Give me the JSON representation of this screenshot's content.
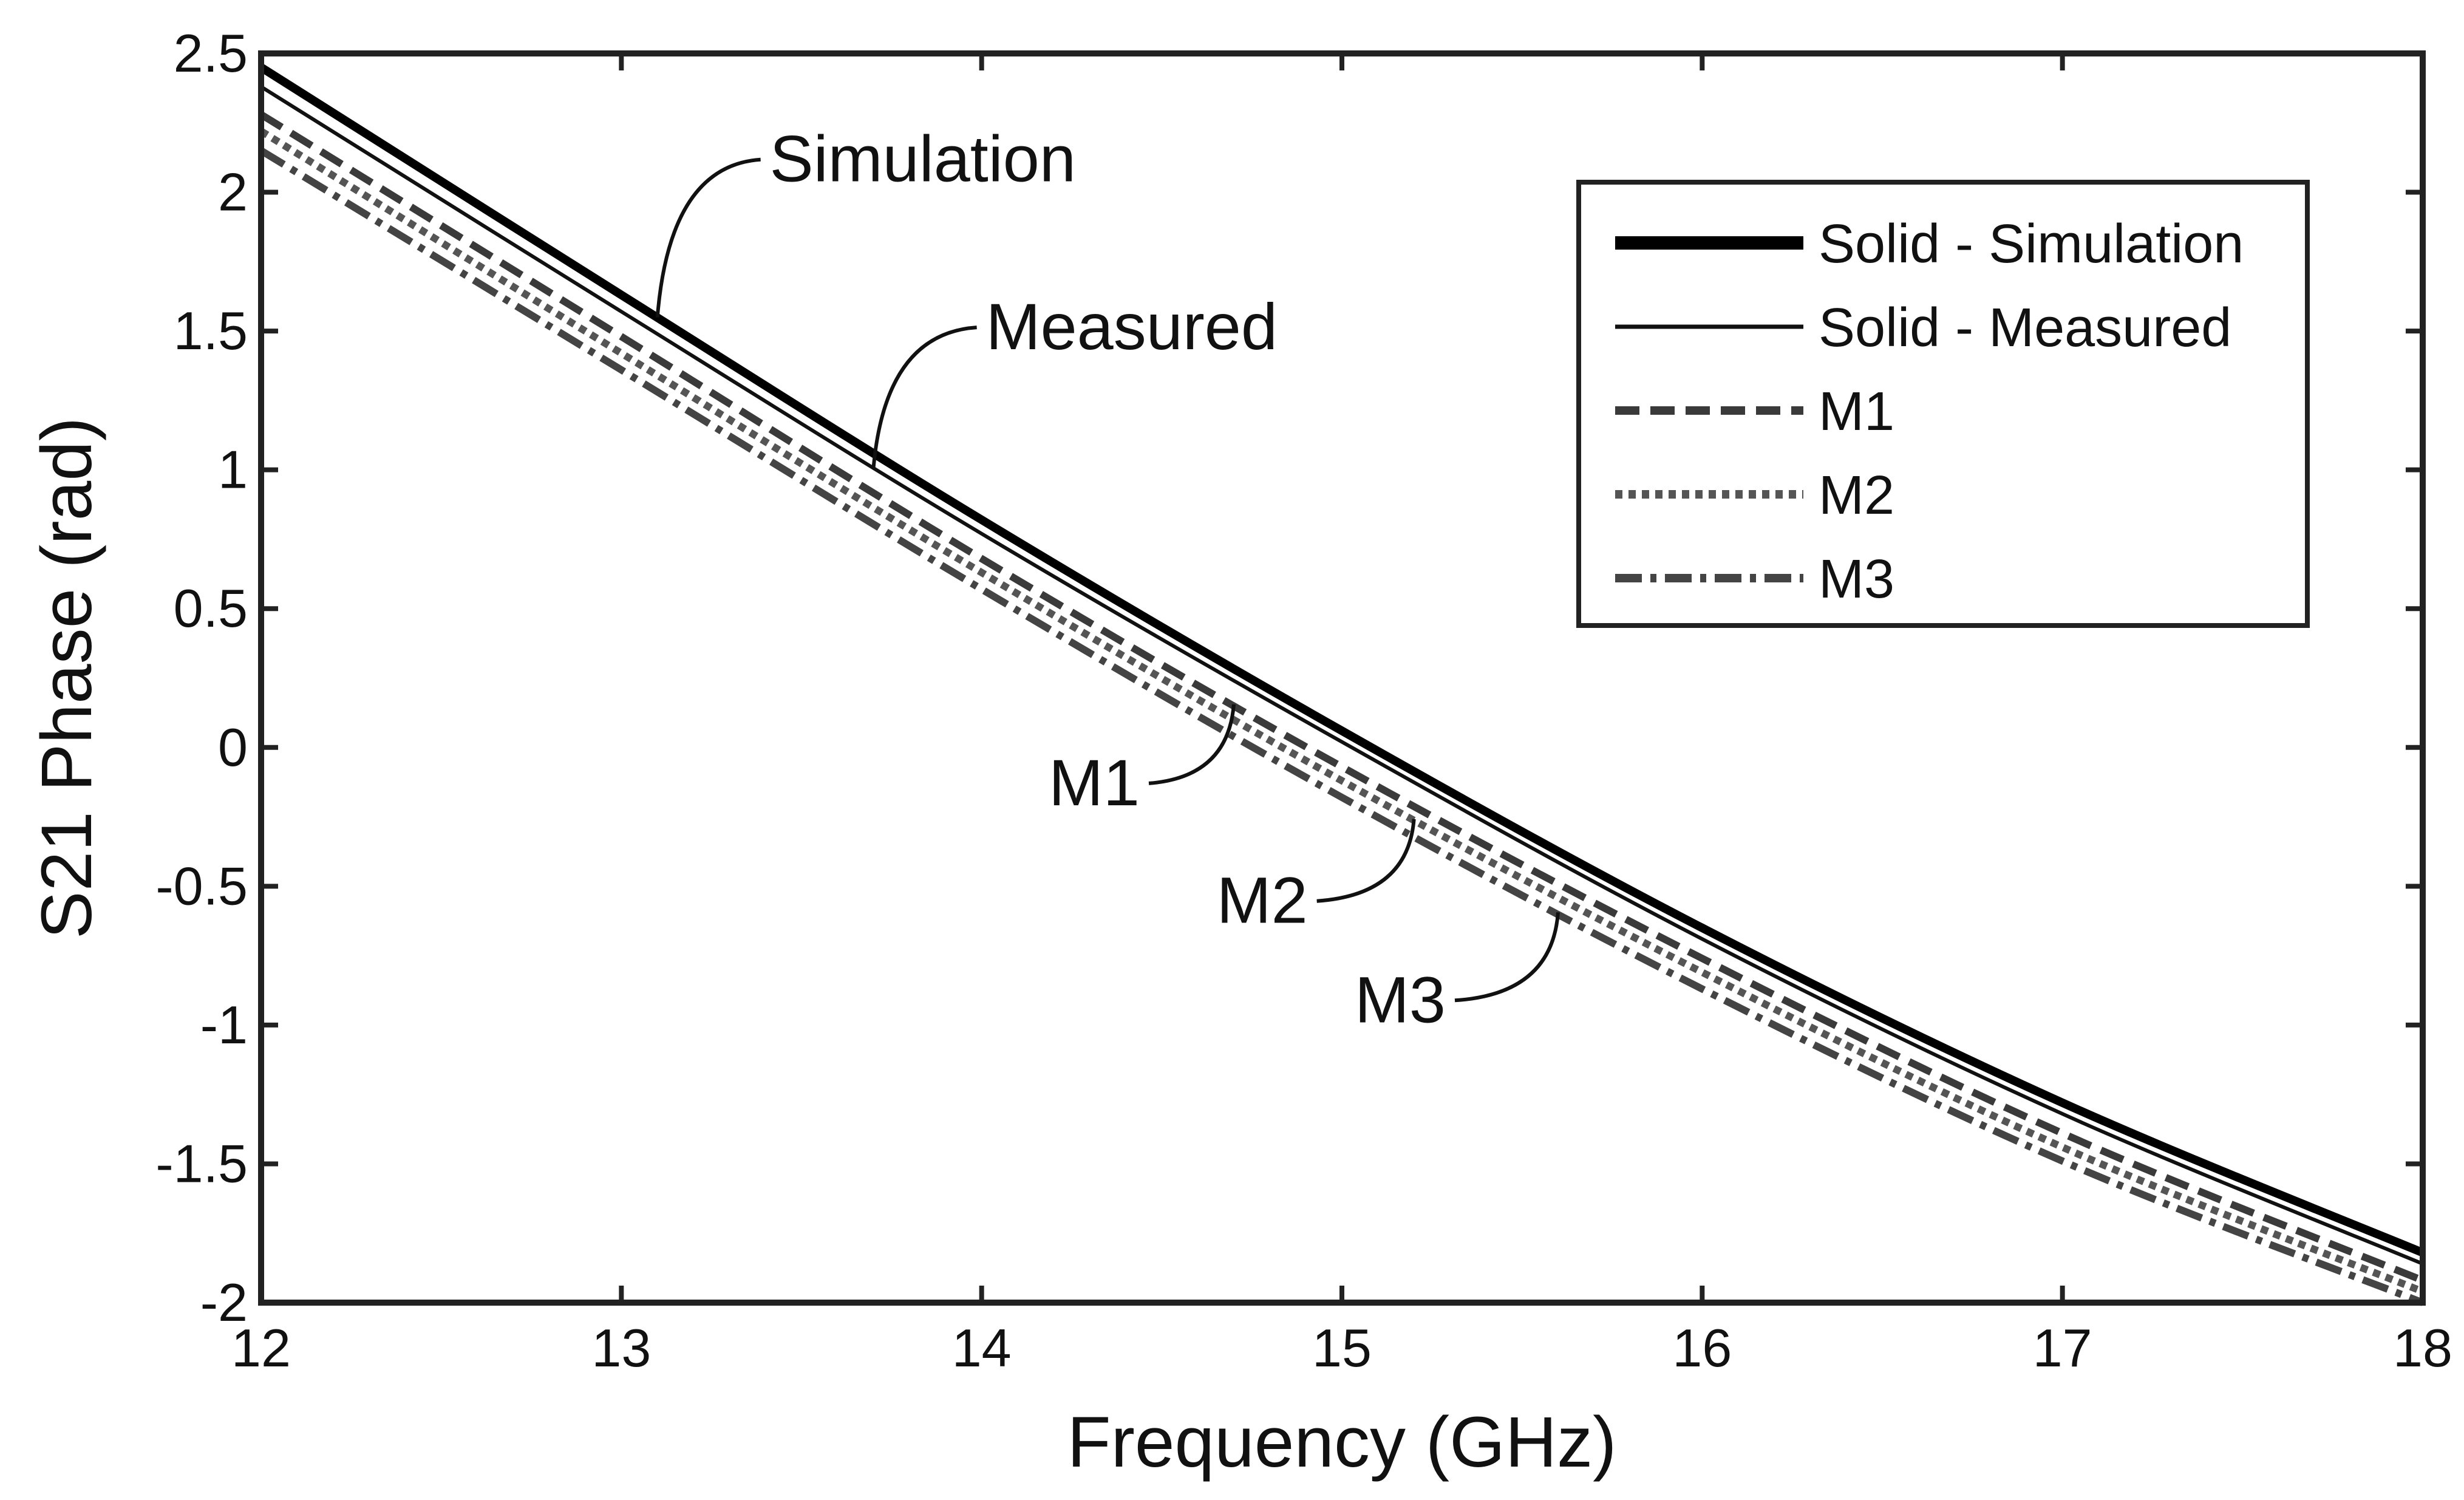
{
  "chart_data": {
    "type": "line",
    "title": "",
    "xlabel": "Frequency (GHz)",
    "ylabel": "S21 Phase (rad)",
    "xlim": [
      12,
      18
    ],
    "ylim": [
      -2,
      2.5
    ],
    "xticks": [
      "12",
      "13",
      "14",
      "15",
      "16",
      "17",
      "18"
    ],
    "yticks": [
      "2.5",
      "2",
      "1.5",
      "1",
      "0.5",
      "0",
      "-0.5",
      "-1",
      "-1.5",
      "-2"
    ],
    "grid": false,
    "legend_position": "top-right",
    "legend": [
      {
        "label": "Solid - Simulation",
        "style": "thick-solid"
      },
      {
        "label": "Solid - Measured",
        "style": "thin-solid"
      },
      {
        "label": "M1",
        "style": "dashed"
      },
      {
        "label": "M2",
        "style": "dotted"
      },
      {
        "label": "M3",
        "style": "dash-dot"
      }
    ],
    "series": [
      {
        "name": "Simulation",
        "x": [
          12,
          13,
          14,
          15,
          16,
          17,
          18
        ],
        "y": [
          2.45,
          1.63,
          0.82,
          0.06,
          -0.65,
          -1.28,
          -1.82
        ],
        "color": "#000000",
        "width": 14,
        "dash": ""
      },
      {
        "name": "Measured",
        "x": [
          12,
          13,
          14,
          15,
          16,
          17,
          18
        ],
        "y": [
          2.38,
          1.57,
          0.77,
          0.02,
          -0.69,
          -1.32,
          -1.86
        ],
        "color": "#111111",
        "width": 6,
        "dash": ""
      },
      {
        "name": "M1",
        "x": [
          12,
          13,
          14,
          15,
          16,
          17,
          18
        ],
        "y": [
          2.28,
          1.48,
          0.68,
          -0.07,
          -0.76,
          -1.39,
          -1.92
        ],
        "color": "#3a3a3a",
        "width": 12,
        "dash": "40 18"
      },
      {
        "name": "M2",
        "x": [
          12,
          13,
          14,
          15,
          16,
          17,
          18
        ],
        "y": [
          2.22,
          1.42,
          0.63,
          -0.12,
          -0.81,
          -1.44,
          -1.96
        ],
        "color": "#555555",
        "width": 12,
        "dash": "12 10"
      },
      {
        "name": "M3",
        "x": [
          12,
          13,
          14,
          15,
          16,
          17,
          18
        ],
        "y": [
          2.15,
          1.36,
          0.57,
          -0.18,
          -0.87,
          -1.49,
          -2.0
        ],
        "color": "#444444",
        "width": 12,
        "dash": "44 14 10 14"
      }
    ],
    "annotations": [
      {
        "label": "Simulation",
        "series": "Simulation",
        "at_x": 13.1
      },
      {
        "label": "Measured",
        "series": "Measured",
        "at_x": 13.7
      },
      {
        "label": "M1",
        "series": "M1",
        "at_x": 14.7
      },
      {
        "label": "M2",
        "series": "M2",
        "at_x": 15.2
      },
      {
        "label": "M3",
        "series": "M3",
        "at_x": 15.6
      }
    ]
  }
}
